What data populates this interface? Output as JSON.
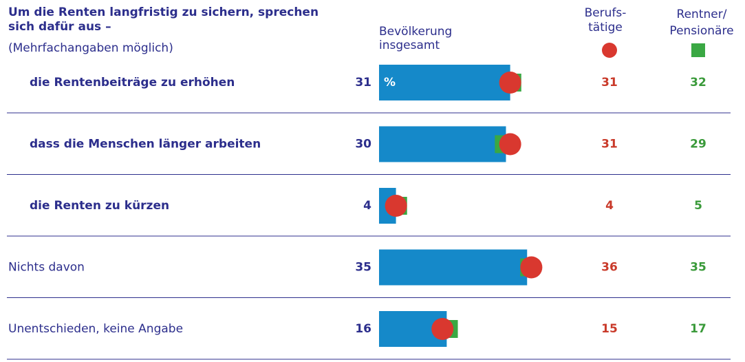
{
  "chart_data": {
    "type": "bar-dot",
    "title": "Um die Renten langfristig zu sichern, sprechen\nsich dafür aus –",
    "subtitle": "(Mehrfachangaben möglich)",
    "unit": "%",
    "categories": [
      "die Rentenbeiträge zu erhöhen",
      "dass die Menschen länger arbeiten",
      "die Renten zu kürzen",
      "Nichts davon",
      "Unentschieden, keine Angabe"
    ],
    "emphasis": [
      true,
      true,
      true,
      false,
      false
    ],
    "series": [
      {
        "name": "Bevölkerung\ninsgesamt",
        "color": "#1589c9",
        "marker": "bar",
        "values": [
          31,
          30,
          4,
          35,
          16
        ]
      },
      {
        "name": "Berufs-\ntätige",
        "color": "#d9382f",
        "marker": "circle",
        "values": [
          31,
          31,
          4,
          36,
          15
        ]
      },
      {
        "name": "Rentner/\nPensionäre",
        "color": "#3aa843",
        "marker": "square",
        "values": [
          32,
          29,
          5,
          35,
          17
        ]
      }
    ]
  }
}
